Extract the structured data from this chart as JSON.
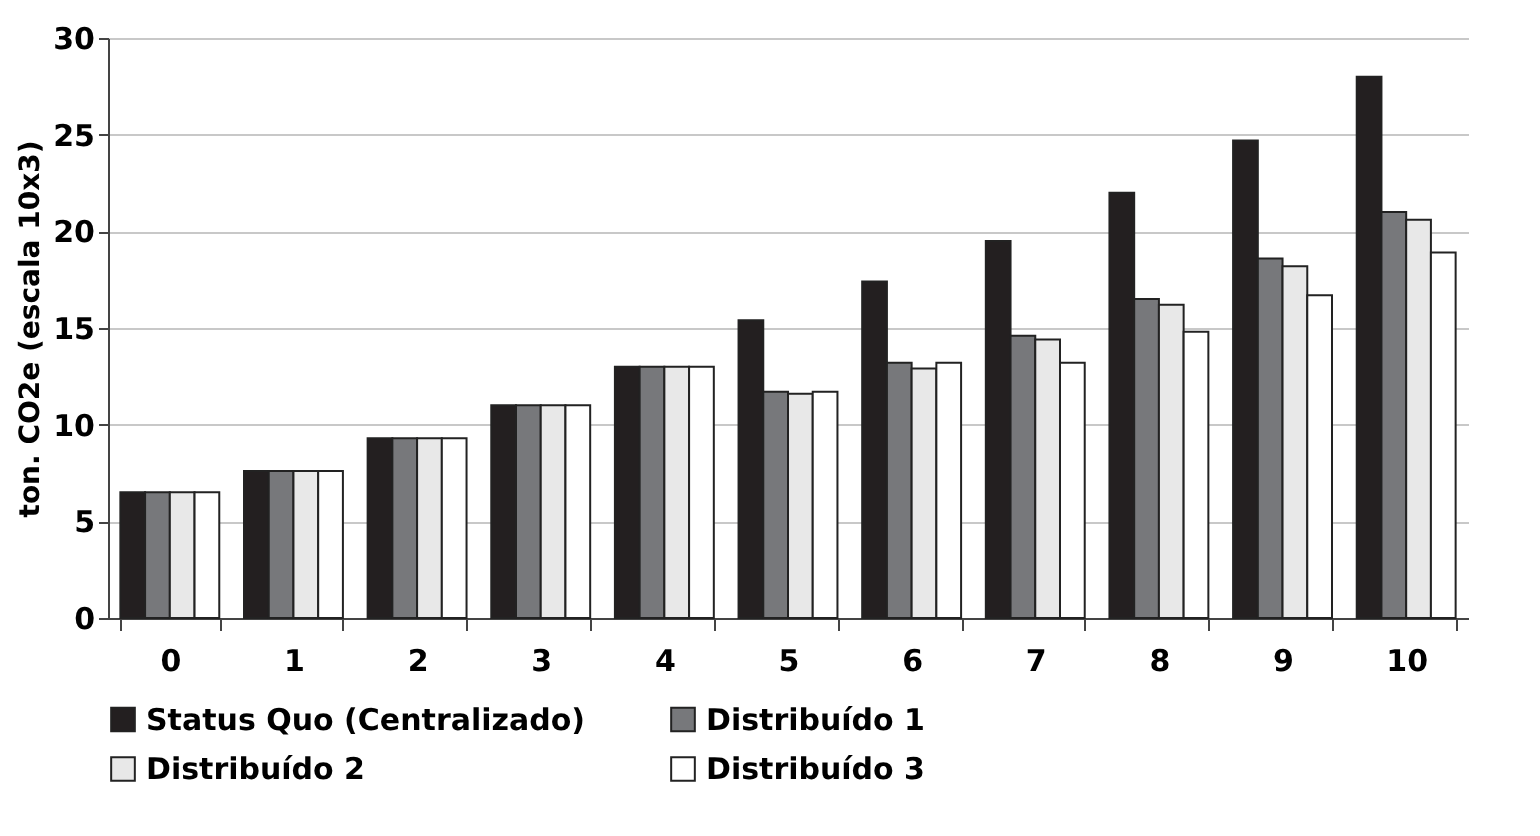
{
  "chart_data": {
    "type": "bar",
    "ylabel": "ton. CO2e (escala 10x3)",
    "categories": [
      "0",
      "1",
      "2",
      "3",
      "4",
      "5",
      "6",
      "7",
      "8",
      "9",
      "10"
    ],
    "series": [
      {
        "name": "Status Quo (Centralizado)",
        "color": "#231f20",
        "values": [
          6.5,
          7.6,
          9.3,
          11,
          13,
          15.4,
          17.4,
          19.5,
          22,
          24.7,
          28
        ]
      },
      {
        "name": "Distribuído 1",
        "color": "#77787b",
        "values": [
          6.5,
          7.6,
          9.3,
          11,
          13,
          11.7,
          13.2,
          14.6,
          16.5,
          18.6,
          21
        ]
      },
      {
        "name": "Distribuído 2",
        "color": "#e8e8e8",
        "values": [
          6.5,
          7.6,
          9.3,
          11,
          13,
          11.6,
          12.9,
          14.4,
          16.2,
          18.2,
          20.6
        ]
      },
      {
        "name": "Distribuído 3",
        "color": "#ffffff",
        "values": [
          6.5,
          7.6,
          9.3,
          11,
          13,
          11.7,
          13.2,
          13.2,
          14.8,
          16.7,
          18.9
        ]
      }
    ],
    "ylim": [
      0,
      30
    ],
    "yticks": [
      0,
      5,
      10,
      15,
      20,
      25,
      30
    ],
    "grid": "y",
    "legend": "bottom"
  }
}
